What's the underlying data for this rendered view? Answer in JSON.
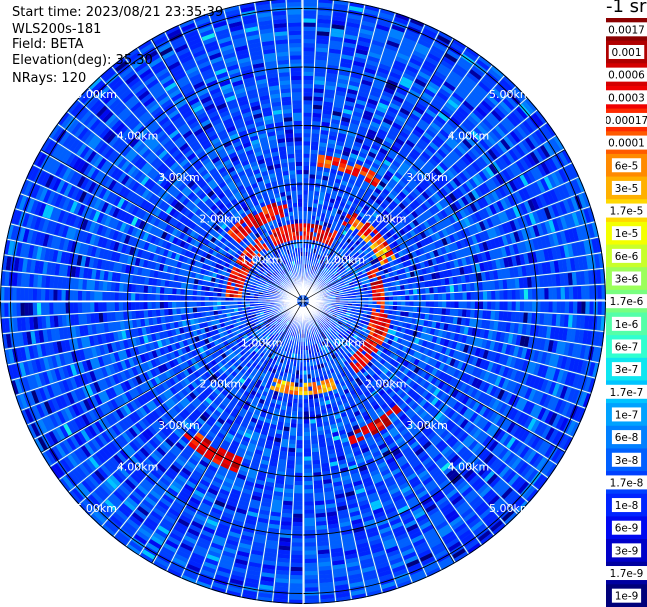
{
  "header": {
    "start_time": "Start time: 2023/08/21 23:35:39",
    "device": "WLS200s-181",
    "field": "Field: BETA",
    "elevation": "Elevation(deg): 35.30",
    "nrays": "NRays: 120"
  },
  "colorbar": {
    "unit_label": "-1 sr",
    "ticks": [
      "0.0017",
      "0.001",
      "0.0006",
      "0.0003",
      "0.00017",
      "0.0001",
      "6e-5",
      "3e-5",
      "1.7e-5",
      "1e-5",
      "6e-6",
      "3e-6",
      "1.7e-6",
      "1e-6",
      "6e-7",
      "3e-7",
      "1.7e-7",
      "1e-7",
      "6e-8",
      "3e-8",
      "1.7e-8",
      "1e-8",
      "6e-9",
      "3e-9",
      "1.7e-9",
      "1e-9"
    ],
    "colors": [
      "#8b0000",
      "#b00000",
      "#d40000",
      "#f00000",
      "#ff2a00",
      "#ff5a00",
      "#ff8a00",
      "#ffb000",
      "#ffd800",
      "#f4ff00",
      "#c8ff2a",
      "#9cff5a",
      "#78ff80",
      "#54ffa8",
      "#30ffd0",
      "#0ee6f0",
      "#00c4ff",
      "#00a2ff",
      "#0080ff",
      "#0060ff",
      "#0040ff",
      "#0024ff",
      "#0008f0",
      "#0000c8",
      "#0000a0",
      "#00007a"
    ]
  },
  "chart_data": {
    "type": "heatmap",
    "projection": "polar (PPI scan)",
    "field": "BETA",
    "scale": "log",
    "value_range": [
      "1e-9",
      "0.0017"
    ],
    "range_rings_km": [
      1,
      2,
      3,
      4,
      5
    ],
    "range_ring_labels": [
      "1.00km",
      "2.00km",
      "3.00km",
      "4.00km",
      "5.00km"
    ],
    "spoke_step_deg": 30,
    "n_rays": 120,
    "background_level": "1e-8 to 6e-8 (blue)",
    "high_backscatter_features": [
      {
        "azimuth_deg": 0,
        "range_km": 1.2,
        "level": "0.0001 to 0.001"
      },
      {
        "azimuth_deg": 20,
        "range_km": 2.4,
        "level": "6e-5 to 0.0003"
      },
      {
        "azimuth_deg": 45,
        "range_km": 1.6,
        "level": "1e-5 to 0.0006"
      },
      {
        "azimuth_deg": 90,
        "range_km": 1.3,
        "level": "0.0001 to 0.001"
      },
      {
        "azimuth_deg": 120,
        "range_km": 1.4,
        "level": "0.0001 to 0.0006"
      },
      {
        "azimuth_deg": 150,
        "range_km": 2.5,
        "level": "0.0001 to 0.001"
      },
      {
        "azimuth_deg": 180,
        "range_km": 1.5,
        "level": "1e-5 to 0.0001"
      },
      {
        "azimuth_deg": 210,
        "range_km": 3.0,
        "level": "0.0001 to 0.0006"
      },
      {
        "azimuth_deg": 300,
        "range_km": 1.2,
        "level": "0.0001 to 0.0006"
      },
      {
        "azimuth_deg": 330,
        "range_km": 1.6,
        "level": "0.0001 to 0.0006"
      }
    ]
  }
}
